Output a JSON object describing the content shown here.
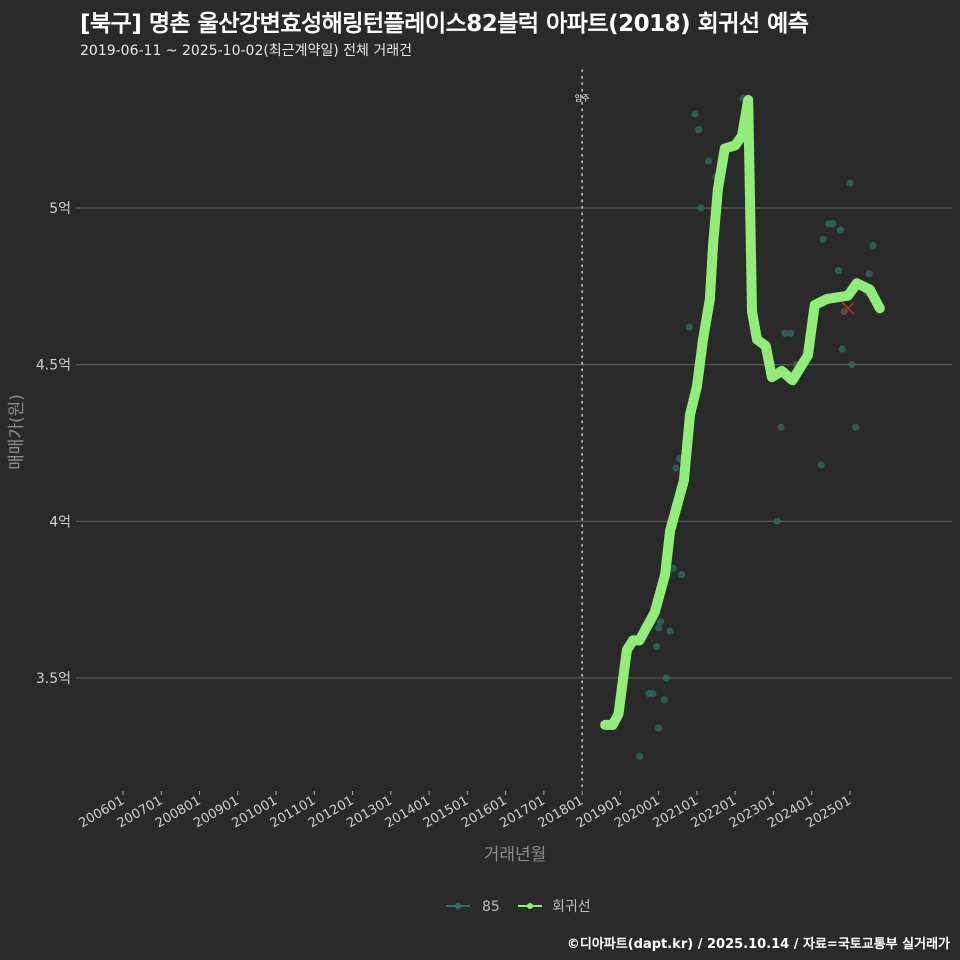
{
  "header": {
    "title": "[북구] 명촌 울산강변효성해링턴플레이스82블럭 아파트(2018) 회귀선 예측",
    "subtitle": "2019-06-11 ~ 2025-10-02(최근계약일) 전체 거래건"
  },
  "caption": "©디아파트(dapt.kr) / 2025.10.14 / 자료=국토교통부 실거래가",
  "colors": {
    "background": "#2a2a2b",
    "grid": "#5a5a5a",
    "regression": "#90ee77",
    "scatter": "#2e6e66",
    "marker": "#cc2222",
    "move_in_line": "#c8c8c8"
  },
  "chart_data": {
    "type": "line",
    "title": "[북구] 명촌 울산강변효성해링턴플레이스82블럭 아파트(2018) 회귀선 예측",
    "subtitle": "2019-06-11 ~ 2025-10-02(최근계약일) 전체 거래건",
    "xlabel": "거래년월",
    "ylabel": "매매가(원)",
    "x_ticks": [
      "200601",
      "200701",
      "200801",
      "200901",
      "201001",
      "201101",
      "201201",
      "201301",
      "201401",
      "201501",
      "201601",
      "201701",
      "201801",
      "201901",
      "202001",
      "202101",
      "202201",
      "202301",
      "202401",
      "202501"
    ],
    "y_ticks": [
      "3.5억",
      "4억",
      "4.5억",
      "5억"
    ],
    "y_tick_values": [
      3.5,
      4.0,
      4.5,
      5.0
    ],
    "ylim": [
      3.2,
      5.4
    ],
    "xlim": [
      2005.5,
      2026.3
    ],
    "grid": true,
    "legend_position": "bottom",
    "legend": [
      {
        "name": "85",
        "color": "#2e6e66"
      },
      {
        "name": "회귀선",
        "color": "#90ee77"
      }
    ],
    "annotations": [
      {
        "label": "입주",
        "x": 2018.0,
        "type": "vertical-dotted-line"
      }
    ],
    "series": [
      {
        "name": "회귀선",
        "type": "line",
        "x": [
          2018.6,
          2018.8,
          2018.95,
          2019.17,
          2019.33,
          2019.5,
          2019.9,
          2020.17,
          2020.3,
          2020.48,
          2020.66,
          2020.82,
          2021.0,
          2021.16,
          2021.34,
          2021.42,
          2021.55,
          2021.73,
          2022.0,
          2022.18,
          2022.34,
          2022.44,
          2022.57,
          2022.8,
          2022.96,
          2023.22,
          2023.5,
          2023.7,
          2023.9,
          2024.08,
          2024.4,
          2024.95,
          2025.18,
          2025.52,
          2025.78
        ],
        "values": [
          3.35,
          3.35,
          3.385,
          3.59,
          3.62,
          3.62,
          3.71,
          3.83,
          3.97,
          4.05,
          4.13,
          4.34,
          4.43,
          4.58,
          4.71,
          4.88,
          5.06,
          5.19,
          5.2,
          5.23,
          5.345,
          4.67,
          4.58,
          4.56,
          4.46,
          4.48,
          4.45,
          4.49,
          4.53,
          4.69,
          4.71,
          4.72,
          4.76,
          4.74,
          4.68
        ]
      },
      {
        "name": "85",
        "type": "scatter",
        "x": [
          2019.5,
          2019.75,
          2019.85,
          2019.95,
          2020.0,
          2020.05,
          2020.1,
          2020.2,
          2020.3,
          2020.38,
          2020.45,
          2020.55,
          2020.6,
          2020.8,
          2020.95,
          2021.05,
          2021.1,
          2021.3,
          2021.5,
          2022.2,
          2020.0,
          2020.15,
          2023.1,
          2023.2,
          2023.3,
          2023.45,
          2023.6,
          2024.25,
          2024.3,
          2024.45,
          2024.55,
          2024.7,
          2024.75,
          2024.85,
          2025.0,
          2025.05,
          2025.15,
          2025.5,
          2025.6,
          2025.45,
          2024.8
        ],
        "values": [
          3.25,
          3.45,
          3.45,
          3.6,
          3.66,
          3.68,
          3.79,
          3.5,
          3.65,
          3.85,
          4.17,
          4.2,
          3.83,
          4.62,
          5.3,
          5.25,
          5.0,
          5.15,
          5.1,
          5.35,
          3.34,
          3.43,
          4.0,
          4.3,
          4.6,
          4.6,
          4.5,
          4.18,
          4.9,
          4.95,
          4.95,
          4.8,
          4.93,
          4.67,
          5.08,
          4.5,
          4.3,
          4.79,
          4.88,
          4.73,
          4.55
        ]
      }
    ],
    "markers": [
      {
        "label": "x-marker",
        "x": 2024.95,
        "value": 4.68,
        "color": "#cc2222"
      }
    ]
  }
}
